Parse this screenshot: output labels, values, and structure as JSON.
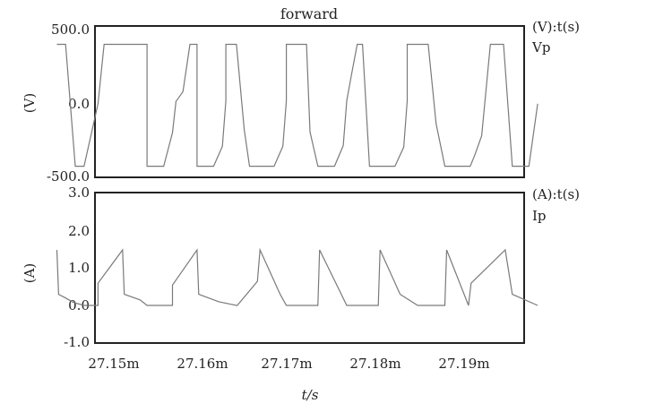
{
  "title": "forward",
  "xlabel": "t/s",
  "chart_data": [
    {
      "type": "line",
      "ylabel": "(V)",
      "legend": "(V):t(s)",
      "series": [
        {
          "name": "Vp",
          "x": [
            27.1435,
            27.1445,
            27.1456,
            27.1466,
            27.1482,
            27.1489,
            27.1499,
            27.1511,
            27.1522,
            27.1532,
            27.1538,
            27.1538,
            27.1557,
            27.1567,
            27.1571,
            27.1579,
            27.1587,
            27.1595,
            27.1595,
            27.1614,
            27.1624,
            27.1628,
            27.1628,
            27.164,
            27.1649,
            27.1655,
            27.1664,
            27.1664,
            27.1683,
            27.1693,
            27.1697,
            27.1697,
            27.1709,
            27.172,
            27.1724,
            27.1733,
            27.1733,
            27.1752,
            27.1762,
            27.1766,
            27.1772,
            27.1778,
            27.1784,
            27.1792,
            27.1802,
            27.1802,
            27.1821,
            27.1831,
            27.1835,
            27.1835,
            27.1847,
            27.1859,
            27.1868,
            27.1878,
            27.1878,
            27.1897,
            27.1907,
            27.1912,
            27.192,
            27.193,
            27.1936,
            27.1945,
            27.1955,
            27.1955,
            27.1974,
            27.1984
          ],
          "y": [
            385,
            385,
            -415,
            -415,
            -5,
            385,
            385,
            385,
            385,
            385,
            385,
            -415,
            -415,
            -195,
            10,
            75,
            385,
            385,
            -415,
            -415,
            -285,
            15,
            385,
            385,
            -175,
            -415,
            -415,
            -415,
            -415,
            -285,
            15,
            385,
            385,
            385,
            -190,
            -415,
            -415,
            -415,
            -280,
            15,
            205,
            385,
            385,
            -415,
            -415,
            -415,
            -415,
            -290,
            15,
            385,
            385,
            385,
            -135,
            -415,
            -415,
            -415,
            -415,
            -345,
            -215,
            385,
            385,
            385,
            -415,
            -415,
            -415,
            -5
          ]
        }
      ]
    },
    {
      "type": "line",
      "ylabel": "(A)",
      "legend": "(A):t(s)",
      "series": [
        {
          "name": "Ip",
          "x": [
            27.1435,
            27.1437,
            27.1445,
            27.1454,
            27.1466,
            27.1467,
            27.1482,
            27.1482,
            27.151,
            27.1512,
            27.153,
            27.1538,
            27.1567,
            27.1567,
            27.1595,
            27.1597,
            27.162,
            27.164,
            27.1641,
            27.1664,
            27.1667,
            27.169,
            27.1697,
            27.1733,
            27.1735,
            27.1766,
            27.1802,
            27.1804,
            27.1827,
            27.1847,
            27.1878,
            27.188,
            27.1905,
            27.1908,
            27.1947,
            27.1955,
            27.1984
          ],
          "y": [
            1.5,
            0.3,
            0.2,
            0.08,
            0.0,
            0.0,
            0.0,
            0.6,
            1.5,
            0.3,
            0.15,
            0.0,
            0.0,
            0.55,
            1.5,
            0.3,
            0.1,
            0.0,
            0.0,
            0.65,
            1.5,
            0.3,
            0.0,
            0.0,
            1.5,
            0.0,
            0.0,
            1.5,
            0.3,
            0.0,
            0.0,
            1.5,
            0.0,
            0.6,
            1.5,
            0.3,
            0.0
          ]
        }
      ]
    }
  ],
  "axes": {
    "x_ticks": [
      "27.15m",
      "27.16m",
      "27.17m",
      "27.18m",
      "27.19m"
    ],
    "top_y_ticks": [
      "500.0",
      "0.0",
      "-500.0"
    ],
    "bottom_y_ticks": [
      "3.0",
      "2.0",
      "1.0",
      "0.0",
      "-1.0"
    ]
  },
  "colors": {
    "trace": "#7a7a7a",
    "frame": "#222222",
    "background": "#ffffff"
  }
}
